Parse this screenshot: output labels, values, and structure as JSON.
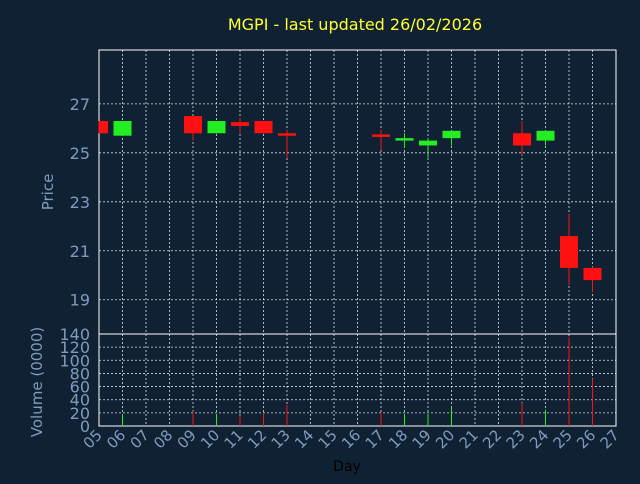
{
  "title": "MGPI - last updated 26/02/2026",
  "colors": {
    "background": "#0f2133",
    "title": "#ffff33",
    "axis_text": "#7f9bbd",
    "up": "#22ee22",
    "down": "#ff1111",
    "grid": "#ffffff"
  },
  "chart_data": [
    {
      "type": "candlestick",
      "ylabel": "Price",
      "ylim": [
        17.6,
        29.2
      ],
      "yticks": [
        19,
        21,
        23,
        25,
        27
      ],
      "grid": true,
      "candles": [
        {
          "day": "05",
          "open": 26.3,
          "high": 26.3,
          "low": 25.8,
          "close": 25.8
        },
        {
          "day": "06",
          "open": 25.7,
          "high": 26.3,
          "low": 25.7,
          "close": 26.3
        },
        {
          "day": "09",
          "open": 26.5,
          "high": 26.5,
          "low": 25.5,
          "close": 25.8
        },
        {
          "day": "10",
          "open": 25.8,
          "high": 26.3,
          "low": 25.8,
          "close": 26.3
        },
        {
          "day": "11",
          "open": 26.25,
          "high": 26.45,
          "low": 25.8,
          "close": 26.1
        },
        {
          "day": "12",
          "open": 26.3,
          "high": 26.3,
          "low": 25.8,
          "close": 25.8
        },
        {
          "day": "13",
          "open": 25.8,
          "high": 25.95,
          "low": 24.8,
          "close": 25.7
        },
        {
          "day": "17",
          "open": 25.75,
          "high": 25.95,
          "low": 25.1,
          "close": 25.65
        },
        {
          "day": "18",
          "open": 25.5,
          "high": 25.8,
          "low": 25.2,
          "close": 25.6
        },
        {
          "day": "19",
          "open": 25.3,
          "high": 25.6,
          "low": 24.8,
          "close": 25.5
        },
        {
          "day": "20",
          "open": 25.6,
          "high": 25.9,
          "low": 25.3,
          "close": 25.9
        },
        {
          "day": "23",
          "open": 25.8,
          "high": 26.3,
          "low": 24.9,
          "close": 25.3
        },
        {
          "day": "24",
          "open": 25.5,
          "high": 25.9,
          "low": 25.3,
          "close": 25.9
        },
        {
          "day": "25",
          "open": 21.6,
          "high": 22.5,
          "low": 19.6,
          "close": 20.3
        },
        {
          "day": "26",
          "open": 20.3,
          "high": 20.35,
          "low": 19.3,
          "close": 19.8
        }
      ]
    },
    {
      "type": "bar",
      "ylabel": "Volume (0000)",
      "xlabel": "Day",
      "ylim": [
        0,
        140
      ],
      "yticks": [
        0,
        20,
        40,
        60,
        80,
        100,
        120,
        140
      ],
      "grid": true,
      "categories": [
        "05",
        "06",
        "07",
        "08",
        "09",
        "10",
        "11",
        "12",
        "13",
        "14",
        "15",
        "16",
        "17",
        "18",
        "19",
        "20",
        "21",
        "22",
        "23",
        "24",
        "25",
        "26",
        "27"
      ],
      "series": [
        {
          "values": [
            {
              "day": "05",
              "value": 0,
              "dir": "down"
            },
            {
              "day": "06",
              "value": 18,
              "dir": "up"
            },
            {
              "day": "09",
              "value": 22,
              "dir": "down"
            },
            {
              "day": "10",
              "value": 18,
              "dir": "up"
            },
            {
              "day": "11",
              "value": 16,
              "dir": "down"
            },
            {
              "day": "12",
              "value": 18,
              "dir": "down"
            },
            {
              "day": "13",
              "value": 32,
              "dir": "down"
            },
            {
              "day": "17",
              "value": 20,
              "dir": "down"
            },
            {
              "day": "18",
              "value": 18,
              "dir": "up"
            },
            {
              "day": "19",
              "value": 18,
              "dir": "up"
            },
            {
              "day": "20",
              "value": 28,
              "dir": "up"
            },
            {
              "day": "23",
              "value": 35,
              "dir": "down"
            },
            {
              "day": "24",
              "value": 25,
              "dir": "up"
            },
            {
              "day": "25",
              "value": 135,
              "dir": "down"
            },
            {
              "day": "26",
              "value": 72,
              "dir": "down"
            }
          ]
        }
      ]
    }
  ]
}
